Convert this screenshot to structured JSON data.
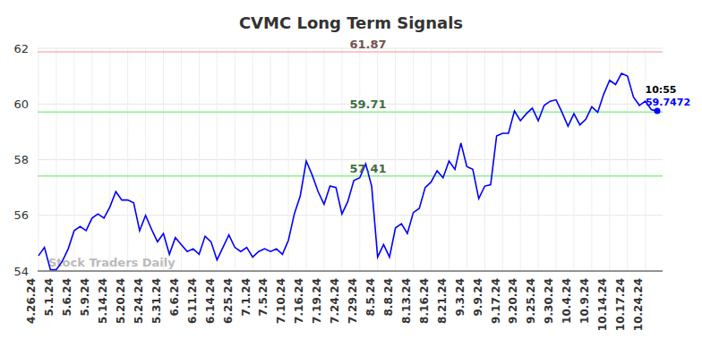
{
  "chart_data": {
    "type": "line",
    "title": "CVMC Long Term Signals",
    "watermark": "Stock Traders Daily",
    "categories": [
      "4.26.24",
      null,
      null,
      "5.1.24",
      null,
      null,
      "5.6.24",
      null,
      null,
      "5.9.24",
      null,
      null,
      "5.14.24",
      null,
      null,
      "5.20.24",
      null,
      null,
      "5.24.24",
      null,
      null,
      "5.31.24",
      null,
      null,
      "6.6.24",
      null,
      null,
      "6.11.24",
      null,
      null,
      "6.14.24",
      null,
      null,
      "6.25.24",
      null,
      null,
      "7.1.24",
      null,
      null,
      "7.5.24",
      null,
      null,
      "7.10.24",
      null,
      null,
      "7.16.24",
      null,
      null,
      "7.19.24",
      null,
      null,
      "7.24.24",
      null,
      null,
      "7.29.24",
      null,
      null,
      "8.5.24",
      null,
      null,
      "8.8.24",
      null,
      null,
      "8.13.24",
      null,
      null,
      "8.16.24",
      null,
      null,
      "8.21.24",
      null,
      null,
      "9.3.24",
      null,
      null,
      "9.9.24",
      null,
      null,
      "9.17.24",
      null,
      null,
      "9.20.24",
      null,
      null,
      "9.25.24",
      null,
      null,
      "9.30.24",
      null,
      null,
      "10.4.24",
      null,
      null,
      "10.9.24",
      null,
      null,
      "10.14.24",
      null,
      null,
      "10.17.24",
      null,
      null,
      "10.24.24",
      null,
      null
    ],
    "series": [
      {
        "name": "CVMC",
        "color": "#0000ff",
        "values": [
          54.55,
          54.85,
          54.05,
          54.05,
          54.35,
          54.8,
          55.45,
          55.6,
          55.45,
          55.9,
          56.05,
          55.9,
          56.3,
          56.85,
          56.55,
          56.55,
          56.45,
          55.45,
          56.0,
          55.5,
          55.05,
          55.35,
          54.6,
          55.2,
          54.95,
          54.7,
          54.8,
          54.6,
          55.25,
          55.05,
          54.4,
          54.85,
          55.3,
          54.85,
          54.7,
          54.85,
          54.5,
          54.7,
          54.8,
          54.7,
          54.8,
          54.6,
          55.1,
          56.05,
          56.7,
          57.95,
          57.45,
          56.85,
          56.4,
          57.05,
          57.0,
          56.05,
          56.5,
          57.25,
          57.35,
          57.85,
          57.05,
          54.5,
          54.95,
          54.5,
          55.55,
          55.7,
          55.35,
          56.1,
          56.25,
          57.0,
          57.2,
          57.6,
          57.35,
          57.95,
          57.65,
          58.6,
          57.75,
          57.65,
          56.6,
          57.05,
          57.1,
          58.85,
          58.95,
          58.95,
          59.75,
          59.4,
          59.65,
          59.85,
          59.4,
          59.95,
          60.1,
          60.15,
          59.7,
          59.2,
          59.65,
          59.25,
          59.45,
          59.9,
          59.7,
          60.35,
          60.85,
          60.7,
          61.1,
          61.0,
          60.25,
          59.95,
          60.1,
          59.8,
          59.7472
        ]
      }
    ],
    "ylim": [
      54,
      62
    ],
    "yticks": [
      54,
      56,
      58,
      60,
      62
    ],
    "grid": true,
    "reference_lines": [
      {
        "value": 61.87,
        "color": "#ffb3b3"
      },
      {
        "value": 59.71,
        "color": "#90ee90"
      },
      {
        "value": 57.41,
        "color": "#90ee90"
      }
    ],
    "annotations": [
      {
        "text": "10:55"
      },
      {
        "value": 59.7472
      }
    ]
  }
}
